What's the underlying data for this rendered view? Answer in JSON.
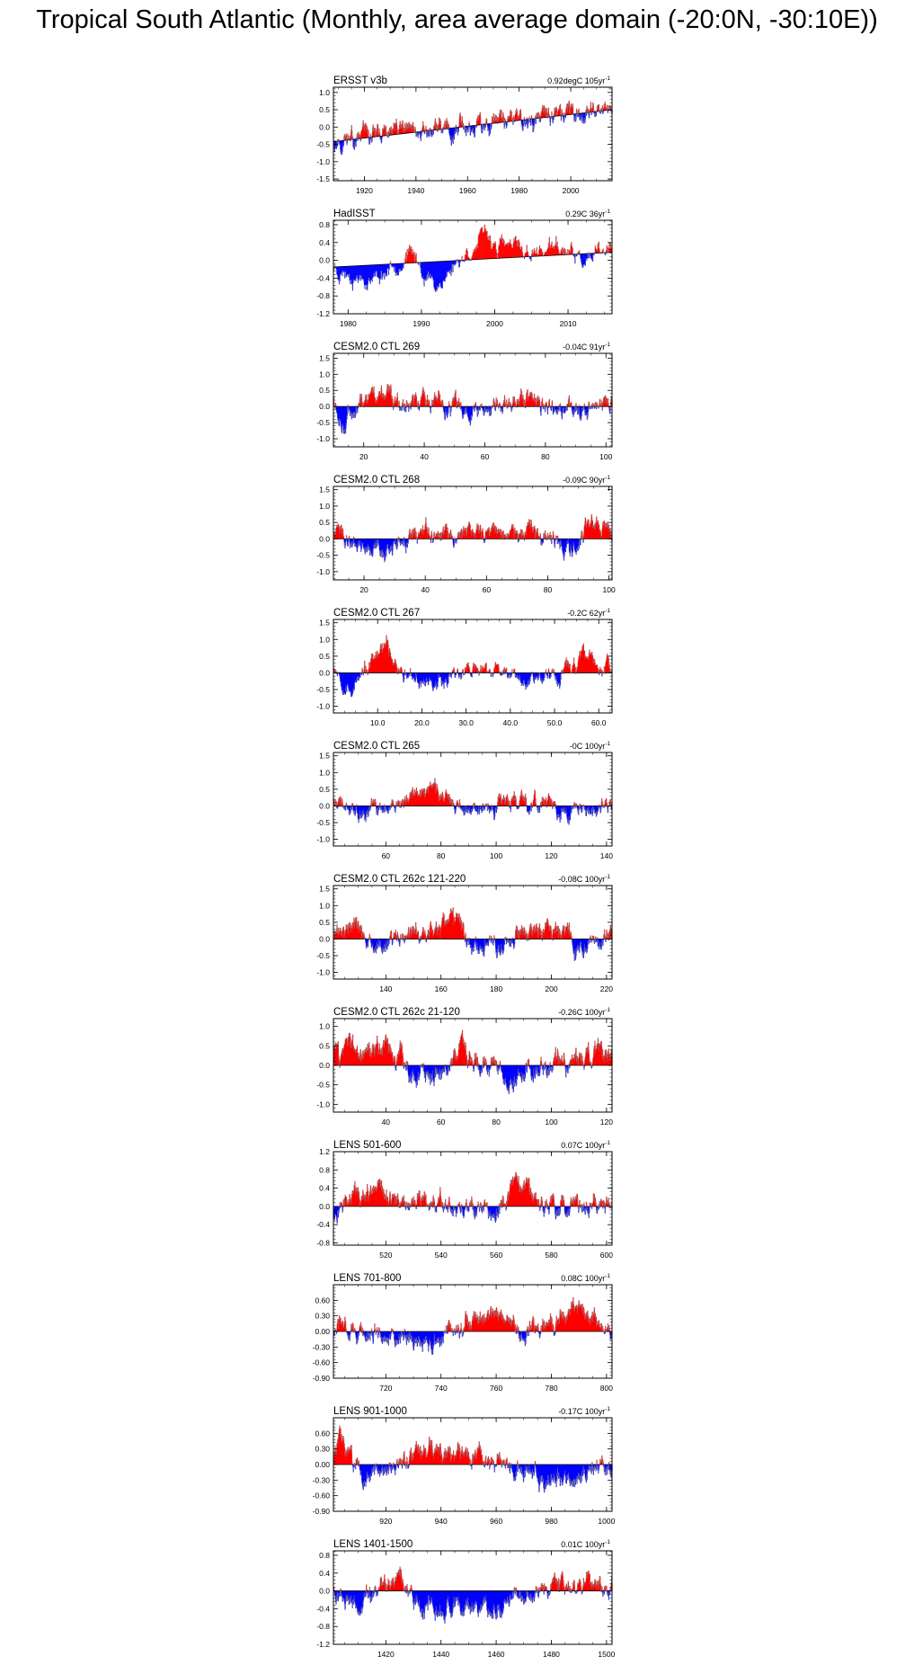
{
  "title": "Tropical South Atlantic (Monthly, area average domain (-20:0N, -30:10E))",
  "colors": {
    "positive": "#ff0000",
    "negative": "#0000ff",
    "axis": "#000000",
    "zero_line": "#000000"
  },
  "chart_data": [
    {
      "type": "bar",
      "name": "ERSST v3b",
      "trend": "0.92degC 105yr",
      "trend_sup": "-1",
      "xlim": [
        1908,
        2016
      ],
      "ylim": [
        -1.55,
        1.15
      ],
      "xticks": [
        1920,
        1940,
        1960,
        1980,
        2000
      ],
      "xtick_labels": [
        "1920",
        "1940",
        "1960",
        "1980",
        "2000"
      ],
      "yticks": [
        -1.5,
        -1.0,
        -0.5,
        0.0,
        0.5,
        1.0
      ],
      "ytick_labels": [
        "-1.5",
        "-1.0",
        "-0.5",
        "0.0",
        "0.5",
        "1.0"
      ],
      "trend_line": [
        -0.42,
        0.5
      ],
      "amp": 0.45,
      "seed": 11,
      "anomaly_shape": [
        [
          1908,
          -0.05
        ],
        [
          1930,
          0.05
        ],
        [
          1950,
          0.05
        ],
        [
          1970,
          0.0
        ],
        [
          1990,
          0.02
        ],
        [
          2016,
          0.05
        ]
      ]
    },
    {
      "type": "bar",
      "name": "HadISST",
      "trend": "0.29C 36yr",
      "trend_sup": "-1",
      "xlim": [
        1978,
        2016
      ],
      "ylim": [
        -1.2,
        0.9
      ],
      "xticks": [
        1980,
        1990,
        2000,
        2010
      ],
      "xtick_labels": [
        "1980",
        "1990",
        "2000",
        "2010"
      ],
      "yticks": [
        -1.2,
        -0.8,
        -0.4,
        0.0,
        0.4,
        0.8
      ],
      "ytick_labels": [
        "-1.2",
        "-0.8",
        "-0.4",
        "0.0",
        "0.4",
        "0.8"
      ],
      "trend_line": [
        -0.15,
        0.18
      ],
      "amp": 0.38,
      "seed": 23,
      "anomaly_shape": [
        [
          1978,
          0.0
        ],
        [
          1984,
          -0.3
        ],
        [
          1988,
          0.3
        ],
        [
          1992,
          -0.6
        ],
        [
          1996,
          0.2
        ],
        [
          1998,
          0.5
        ],
        [
          2004,
          0.1
        ],
        [
          2008,
          0.2
        ],
        [
          2013,
          -0.3
        ],
        [
          2016,
          0.05
        ]
      ]
    },
    {
      "type": "bar",
      "name": "CESM2.0 CTL 269",
      "trend": "-0.04C 91yr",
      "trend_sup": "-1",
      "xlim": [
        10,
        102
      ],
      "ylim": [
        -1.25,
        1.65
      ],
      "xticks": [
        20,
        40,
        60,
        80,
        100
      ],
      "xtick_labels": [
        "20",
        "40",
        "60",
        "80",
        "100"
      ],
      "yticks": [
        -1.0,
        -0.5,
        0.0,
        0.5,
        1.0,
        1.5
      ],
      "ytick_labels": [
        "-1.0",
        "-0.5",
        "0.0",
        "0.5",
        "1.0",
        "1.5"
      ],
      "trend_line": [
        0.0,
        0.0
      ],
      "amp": 0.5,
      "seed": 37,
      "anomaly_shape": [
        [
          10,
          0.4
        ],
        [
          13,
          -0.4
        ],
        [
          24,
          0.4
        ],
        [
          60,
          -0.2
        ],
        [
          72,
          0.4
        ],
        [
          80,
          -0.2
        ],
        [
          102,
          0.1
        ]
      ]
    },
    {
      "type": "bar",
      "name": "CESM2.0 CTL 268",
      "trend": "-0.09C 90yr",
      "trend_sup": "-1",
      "xlim": [
        10,
        101
      ],
      "ylim": [
        -1.25,
        1.6
      ],
      "xticks": [
        20,
        40,
        60,
        80,
        100
      ],
      "xtick_labels": [
        "20",
        "40",
        "60",
        "80",
        "100"
      ],
      "yticks": [
        -1.0,
        -0.5,
        0.0,
        0.5,
        1.0,
        1.5
      ],
      "ytick_labels": [
        "-1.0",
        "-0.5",
        "0.0",
        "0.5",
        "1.0",
        "1.5"
      ],
      "trend_line": [
        0.0,
        0.0
      ],
      "amp": 0.45,
      "seed": 41,
      "anomaly_shape": [
        [
          10,
          0.2
        ],
        [
          27,
          -0.4
        ],
        [
          40,
          0.1
        ],
        [
          66,
          0.3
        ],
        [
          90,
          -0.4
        ],
        [
          93,
          0.7
        ],
        [
          101,
          0.2
        ]
      ]
    },
    {
      "type": "bar",
      "name": "CESM2.0 CTL 267",
      "trend": "-0.2C 62yr",
      "trend_sup": "-1",
      "xlim": [
        0,
        63
      ],
      "ylim": [
        -1.2,
        1.6
      ],
      "xticks": [
        10,
        20,
        30,
        40,
        50,
        60
      ],
      "xtick_labels": [
        "10.0",
        "20.0",
        "30.0",
        "40.0",
        "50.0",
        "60.0"
      ],
      "yticks": [
        -1.0,
        -0.5,
        0.0,
        0.5,
        1.0,
        1.5
      ],
      "ytick_labels": [
        "-1.0",
        "-0.5",
        "0.0",
        "0.5",
        "1.0",
        "1.5"
      ],
      "trend_line": [
        0.0,
        0.0
      ],
      "amp": 0.45,
      "seed": 53,
      "anomaly_shape": [
        [
          0,
          0.3
        ],
        [
          4,
          -0.5
        ],
        [
          12,
          0.8
        ],
        [
          18,
          -0.4
        ],
        [
          30,
          0.1
        ],
        [
          50,
          -0.1
        ],
        [
          57,
          0.5
        ],
        [
          63,
          0.0
        ]
      ]
    },
    {
      "type": "bar",
      "name": "CESM2.0 CTL 265",
      "trend": "-0C 100yr",
      "trend_sup": "-1",
      "xlim": [
        41,
        142
      ],
      "ylim": [
        -1.2,
        1.6
      ],
      "xticks": [
        60,
        80,
        100,
        120,
        140
      ],
      "xtick_labels": [
        "60",
        "80",
        "100",
        "120",
        "140"
      ],
      "yticks": [
        -1.0,
        -0.5,
        0.0,
        0.5,
        1.0,
        1.5
      ],
      "ytick_labels": [
        "-1.0",
        "-0.5",
        "0.0",
        "0.5",
        "1.0",
        "1.5"
      ],
      "trend_line": [
        0.0,
        0.0
      ],
      "amp": 0.4,
      "seed": 61,
      "anomaly_shape": [
        [
          41,
          0.2
        ],
        [
          50,
          -0.4
        ],
        [
          77,
          0.6
        ],
        [
          90,
          -0.2
        ],
        [
          110,
          0.2
        ],
        [
          130,
          -0.2
        ],
        [
          142,
          0.0
        ]
      ]
    },
    {
      "type": "bar",
      "name": "CESM2.0 CTL 262c 121-220",
      "trend": "-0.08C 100yr",
      "trend_sup": "-1",
      "xlim": [
        121,
        222
      ],
      "ylim": [
        -1.2,
        1.6
      ],
      "xticks": [
        140,
        160,
        180,
        200,
        220
      ],
      "xtick_labels": [
        "140",
        "160",
        "180",
        "200",
        "220"
      ],
      "yticks": [
        -1.0,
        -0.5,
        0.0,
        0.5,
        1.0,
        1.5
      ],
      "ytick_labels": [
        "-1.0",
        "-0.5",
        "0.0",
        "0.5",
        "1.0",
        "1.5"
      ],
      "trend_line": [
        0.0,
        0.0
      ],
      "amp": 0.45,
      "seed": 71,
      "anomaly_shape": [
        [
          121,
          0.1
        ],
        [
          129,
          0.5
        ],
        [
          135,
          -0.4
        ],
        [
          167,
          0.6
        ],
        [
          172,
          -0.3
        ],
        [
          205,
          0.4
        ],
        [
          210,
          -0.5
        ],
        [
          222,
          0.1
        ]
      ]
    },
    {
      "type": "bar",
      "name": "CESM2.0 CTL 262c 21-120",
      "trend": "-0.26C 100yr",
      "trend_sup": "-1",
      "xlim": [
        21,
        122
      ],
      "ylim": [
        -1.2,
        1.2
      ],
      "xticks": [
        40,
        60,
        80,
        100,
        120
      ],
      "xtick_labels": [
        "40",
        "60",
        "80",
        "100",
        "120"
      ],
      "yticks": [
        -1.0,
        -0.5,
        0.0,
        0.5,
        1.0
      ],
      "ytick_labels": [
        "-1.0",
        "-0.5",
        "0.0",
        "0.5",
        "1.0"
      ],
      "trend_line": [
        0.0,
        0.0
      ],
      "amp": 0.45,
      "seed": 83,
      "anomaly_shape": [
        [
          21,
          0.5
        ],
        [
          40,
          0.5
        ],
        [
          55,
          -0.6
        ],
        [
          68,
          0.5
        ],
        [
          85,
          -0.3
        ],
        [
          110,
          0.2
        ],
        [
          122,
          0.5
        ]
      ]
    },
    {
      "type": "bar",
      "name": "LENS 501-600",
      "trend": "0.07C 100yr",
      "trend_sup": "-1",
      "xlim": [
        501,
        602
      ],
      "ylim": [
        -0.85,
        1.2
      ],
      "xticks": [
        520,
        540,
        560,
        580,
        600
      ],
      "xtick_labels": [
        "520",
        "540",
        "560",
        "580",
        "600"
      ],
      "yticks": [
        -0.8,
        -0.4,
        0.0,
        0.4,
        0.8,
        1.2
      ],
      "ytick_labels": [
        "-0.8",
        "-0.4",
        "0.0",
        "0.4",
        "0.8",
        "1.2"
      ],
      "trend_line": [
        0.0,
        0.0
      ],
      "amp": 0.35,
      "seed": 97,
      "anomaly_shape": [
        [
          501,
          -0.1
        ],
        [
          510,
          0.2
        ],
        [
          530,
          0.1
        ],
        [
          560,
          -0.2
        ],
        [
          568,
          0.5
        ],
        [
          580,
          0.0
        ],
        [
          602,
          0.0
        ]
      ]
    },
    {
      "type": "bar",
      "name": "LENS 701-800",
      "trend": "0.08C 100yr",
      "trend_sup": "-1",
      "xlim": [
        701,
        802
      ],
      "ylim": [
        -0.9,
        0.9
      ],
      "xticks": [
        720,
        740,
        760,
        780,
        800
      ],
      "xtick_labels": [
        "720",
        "740",
        "760",
        "780",
        "800"
      ],
      "yticks": [
        -0.9,
        -0.6,
        -0.3,
        0.0,
        0.3,
        0.6
      ],
      "ytick_labels": [
        "-0.90",
        "-0.60",
        "-0.30",
        "0.00",
        "0.30",
        "0.60"
      ],
      "trend_line": [
        0.0,
        0.0
      ],
      "amp": 0.3,
      "seed": 103,
      "anomaly_shape": [
        [
          701,
          0.05
        ],
        [
          738,
          -0.3
        ],
        [
          758,
          0.5
        ],
        [
          770,
          0.0
        ],
        [
          792,
          0.4
        ],
        [
          802,
          0.0
        ]
      ]
    },
    {
      "type": "bar",
      "name": "LENS 901-1000",
      "trend": "-0.17C 100yr",
      "trend_sup": "-1",
      "xlim": [
        901,
        1002
      ],
      "ylim": [
        -0.9,
        0.9
      ],
      "xticks": [
        920,
        940,
        960,
        980,
        1000
      ],
      "xtick_labels": [
        "920",
        "940",
        "960",
        "980",
        "1000"
      ],
      "yticks": [
        -0.9,
        -0.6,
        -0.3,
        0.0,
        0.3,
        0.6
      ],
      "ytick_labels": [
        "-0.90",
        "-0.60",
        "-0.30",
        "0.00",
        "0.30",
        "0.60"
      ],
      "trend_line": [
        0.0,
        0.0
      ],
      "amp": 0.3,
      "seed": 113,
      "anomaly_shape": [
        [
          901,
          0.3
        ],
        [
          904,
          0.6
        ],
        [
          912,
          -0.3
        ],
        [
          935,
          0.3
        ],
        [
          960,
          0.1
        ],
        [
          980,
          -0.3
        ],
        [
          1002,
          -0.1
        ]
      ]
    },
    {
      "type": "bar",
      "name": "LENS 1401-1500",
      "trend": "0.01C 100yr",
      "trend_sup": "-1",
      "xlim": [
        1401,
        1502
      ],
      "ylim": [
        -1.2,
        0.9
      ],
      "xticks": [
        1420,
        1440,
        1460,
        1480,
        1500
      ],
      "xtick_labels": [
        "1420",
        "1440",
        "1460",
        "1480",
        "1500"
      ],
      "yticks": [
        -1.2,
        -0.8,
        -0.4,
        0.0,
        0.4,
        0.8
      ],
      "ytick_labels": [
        "-1.2",
        "-0.8",
        "-0.4",
        "0.0",
        "0.4",
        "0.8"
      ],
      "trend_line": [
        0.0,
        0.0
      ],
      "amp": 0.35,
      "seed": 127,
      "anomaly_shape": [
        [
          1401,
          0.1
        ],
        [
          1410,
          -0.4
        ],
        [
          1425,
          0.4
        ],
        [
          1433,
          -0.5
        ],
        [
          1460,
          -0.4
        ],
        [
          1480,
          0.1
        ],
        [
          1502,
          0.1
        ]
      ]
    }
  ]
}
